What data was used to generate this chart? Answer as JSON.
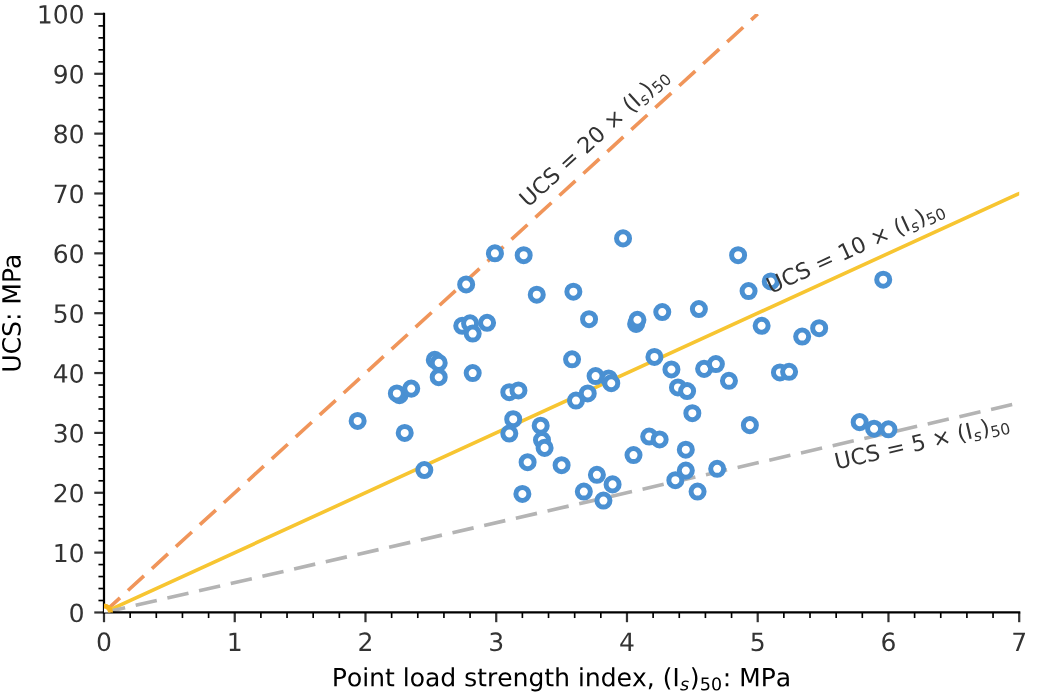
{
  "chart_data": {
    "type": "scatter",
    "xlabel": "Point load strength index, (I$_{s}$)$_{50}$: MPa",
    "ylabel": "UCS: MPa",
    "xlim": [
      0,
      7
    ],
    "ylim": [
      0,
      100
    ],
    "xticks": [
      0,
      1,
      2,
      3,
      4,
      5,
      6,
      7
    ],
    "yticks": [
      0,
      10,
      20,
      30,
      40,
      50,
      60,
      70,
      80,
      90,
      100
    ],
    "grid": false,
    "legend": false,
    "series": [
      {
        "type": "line",
        "color": "#f0955a",
        "line_style": "dashed",
        "marker": "none",
        "x": [
          0,
          5
        ],
        "values": [
          0,
          100
        ]
      },
      {
        "type": "line",
        "color": "#f7c531",
        "line_style": "solid",
        "marker": "none",
        "x": [
          0,
          7
        ],
        "values": [
          0,
          70
        ]
      },
      {
        "type": "line",
        "color": "#b4b4b4",
        "line_style": "dashed",
        "marker": "none",
        "x": [
          0,
          7
        ],
        "values": [
          0,
          35
        ]
      },
      {
        "type": "scatter",
        "color": "#f7b51d",
        "marker": "circle",
        "x": [
          0
        ],
        "values": [
          0
        ]
      },
      {
        "color": "#4a90d2",
        "marker": "circle",
        "x": [
          2.99,
          3.21,
          3.97,
          2.77,
          3.31,
          3.59,
          2.74,
          2.8,
          2.82,
          2.93,
          3.71,
          4.07,
          4.08,
          4.27,
          4.55,
          2.53,
          2.56,
          2.56,
          2.82,
          3.58,
          4.21,
          2.26,
          2.24,
          2.35,
          3.1,
          3.17,
          3.76,
          3.86,
          3.88,
          4.34,
          4.59,
          4.68,
          4.39,
          4.46,
          3.61,
          3.7,
          2.3,
          3.13,
          3.1,
          3.34,
          3.35,
          3.37,
          4.5,
          4.17,
          4.25,
          4.45,
          2.45,
          3.24,
          3.5,
          4.05,
          3.77,
          3.89,
          3.67,
          3.2,
          3.82,
          4.37,
          4.45,
          4.54,
          4.69,
          4.85,
          4.93,
          5.1,
          5.96,
          5.03,
          5.34,
          5.47,
          4.78,
          5.17,
          5.24,
          4.94,
          5.78,
          5.89,
          6.0,
          1.94
        ],
        "values": [
          60.0,
          59.7,
          62.5,
          54.8,
          53.1,
          53.6,
          47.9,
          48.3,
          46.6,
          48.4,
          49.0,
          48.2,
          48.9,
          50.2,
          50.7,
          42.2,
          41.7,
          39.3,
          40.0,
          42.3,
          42.7,
          36.3,
          36.6,
          37.4,
          36.8,
          37.1,
          39.5,
          39.1,
          38.3,
          40.6,
          40.7,
          41.5,
          37.6,
          37.0,
          35.4,
          36.6,
          30.0,
          32.3,
          29.9,
          31.2,
          28.8,
          27.5,
          33.3,
          29.4,
          28.9,
          27.2,
          23.8,
          25.1,
          24.6,
          26.3,
          23.0,
          21.4,
          20.2,
          19.8,
          18.7,
          22.1,
          23.7,
          20.2,
          24.0,
          59.7,
          53.7,
          55.3,
          55.6,
          47.9,
          46.1,
          47.5,
          38.7,
          40.1,
          40.2,
          31.3,
          31.8,
          30.7,
          30.6,
          32.0
        ]
      }
    ],
    "annotations": [
      "UCS = 20 × (I$_{s}$)$_{50}$",
      "UCS = 10 × (I$_{s}$)$_{50}$",
      "UCS = 5 × (I$_{s}$)$_{50}$"
    ]
  }
}
